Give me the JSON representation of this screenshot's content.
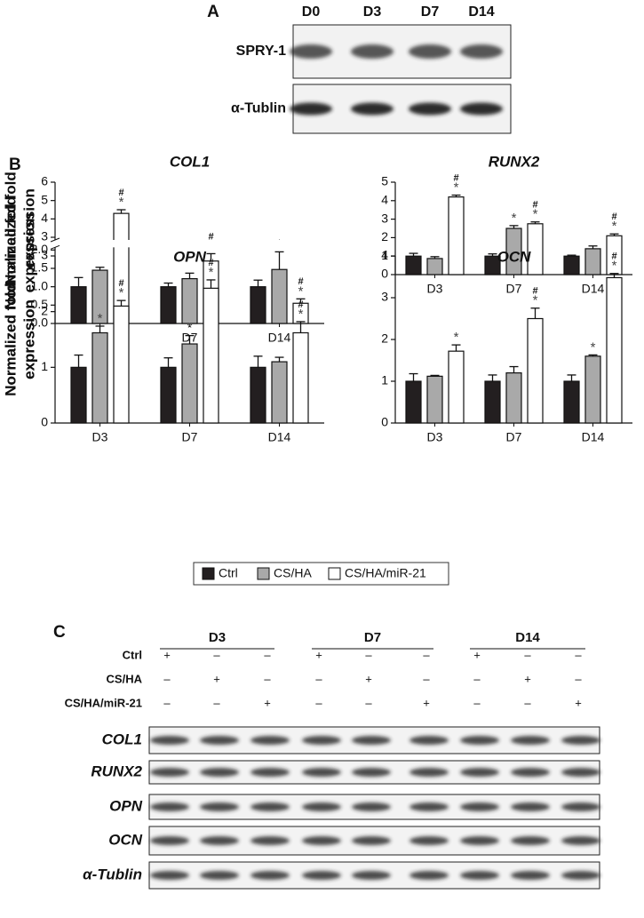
{
  "panel_a": {
    "label": "A",
    "lanes": [
      "D0",
      "D3",
      "D7",
      "D14"
    ],
    "rows": [
      "SPRY-1",
      "α-Tublin"
    ]
  },
  "panel_b_label": "B",
  "chart_data": [
    {
      "type": "bar",
      "title": "COL1",
      "y_label": [
        "Normalized fold",
        "expression"
      ],
      "categories": [
        "D3",
        "D7",
        "D14"
      ],
      "series": [
        {
          "name": "Ctrl",
          "color": "#231f20",
          "values": [
            1,
            1,
            1
          ],
          "errors": [
            0.25,
            0.1,
            0.18
          ],
          "annotations": [
            null,
            null,
            null
          ]
        },
        {
          "name": "CS/HA",
          "color": "#a9a9a9",
          "values": [
            1.45,
            1.22,
            1.47
          ],
          "errors": [
            0.08,
            0.15,
            0.48
          ],
          "annotations": [
            null,
            null,
            [
              "*"
            ]
          ]
        },
        {
          "name": "CS/HA/miR-21",
          "color": "#ffffff",
          "values": [
            4.3,
            1.7,
            0.55
          ],
          "errors": [
            0.2,
            0.2,
            0.12
          ],
          "annotations": [
            [
              "#",
              "*"
            ],
            [
              "#",
              "*"
            ],
            [
              "#",
              "*"
            ]
          ]
        }
      ],
      "ylim": [
        0,
        6
      ],
      "axis_break": [
        2,
        3
      ],
      "yticks": [
        {
          "value": 0,
          "label": "0.0"
        },
        {
          "value": 0.5,
          "label": "0.5"
        },
        {
          "value": 1,
          "label": "1.0"
        },
        {
          "value": 1.5,
          "label": "1.5"
        },
        {
          "value": 2,
          "label": "2.0"
        },
        3,
        4,
        5,
        6
      ],
      "legend": "bottom"
    },
    {
      "type": "bar",
      "title": "RUNX2",
      "y_label": [
        "Normalized fold",
        "expression"
      ],
      "categories": [
        "D3",
        "D7",
        "D14"
      ],
      "series": [
        {
          "name": "Ctrl",
          "color": "#231f20",
          "values": [
            1,
            1,
            1
          ],
          "errors": [
            0.15,
            0.12,
            0.05
          ],
          "annotations": [
            null,
            null,
            null
          ]
        },
        {
          "name": "CS/HA",
          "color": "#a9a9a9",
          "values": [
            0.87,
            2.5,
            1.4
          ],
          "errors": [
            0.1,
            0.15,
            0.15
          ],
          "annotations": [
            null,
            [
              "*"
            ],
            null
          ]
        },
        {
          "name": "CS/HA/miR-21",
          "color": "#ffffff",
          "values": [
            4.2,
            2.75,
            2.1
          ],
          "errors": [
            0.1,
            0.1,
            0.1
          ],
          "annotations": [
            [
              "#",
              "*"
            ],
            [
              "#",
              "*"
            ],
            [
              "#",
              "*"
            ]
          ]
        }
      ],
      "ylim": [
        0,
        5
      ],
      "yticks": [
        0,
        1,
        2,
        3,
        4,
        5
      ]
    },
    {
      "type": "bar",
      "title": "OPN",
      "y_label": [
        "Normalized fold",
        "expression"
      ],
      "categories": [
        "D3",
        "D7",
        "D14"
      ],
      "series": [
        {
          "name": "Ctrl",
          "color": "#231f20",
          "values": [
            1,
            1,
            1
          ],
          "errors": [
            0.22,
            0.17,
            0.2
          ],
          "annotations": [
            null,
            null,
            null
          ]
        },
        {
          "name": "CS/HA",
          "color": "#a9a9a9",
          "values": [
            1.62,
            1.42,
            1.1
          ],
          "errors": [
            0.12,
            0.15,
            0.08
          ],
          "annotations": [
            [
              "*"
            ],
            [
              "*"
            ],
            null
          ]
        },
        {
          "name": "CS/HA/miR-21",
          "color": "#ffffff",
          "values": [
            2.1,
            2.42,
            1.62
          ],
          "errors": [
            0.1,
            0.15,
            0.2
          ],
          "annotations": [
            [
              "#",
              "*"
            ],
            [
              "#",
              "*"
            ],
            [
              "#",
              "*"
            ]
          ]
        }
      ],
      "ylim": [
        0,
        3
      ],
      "yticks": [
        0,
        1,
        2,
        3
      ]
    },
    {
      "type": "bar",
      "title": "OCN",
      "y_label": [
        "Normalized fold",
        "expression"
      ],
      "categories": [
        "D3",
        "D7",
        "D14"
      ],
      "series": [
        {
          "name": "Ctrl",
          "color": "#231f20",
          "values": [
            1,
            1,
            1
          ],
          "errors": [
            0.18,
            0.15,
            0.15
          ],
          "annotations": [
            null,
            null,
            null
          ]
        },
        {
          "name": "CS/HA",
          "color": "#a9a9a9",
          "values": [
            1.12,
            1.2,
            1.6
          ],
          "errors": [
            0.02,
            0.15,
            0.03
          ],
          "annotations": [
            null,
            null,
            [
              "*"
            ]
          ]
        },
        {
          "name": "CS/HA/miR-21",
          "color": "#ffffff",
          "values": [
            1.72,
            2.5,
            3.48
          ],
          "errors": [
            0.15,
            0.25,
            0.1
          ],
          "annotations": [
            [
              "*"
            ],
            [
              "#",
              "*"
            ],
            [
              "#",
              "*"
            ]
          ]
        }
      ],
      "ylim": [
        0,
        4
      ],
      "yticks": [
        0,
        1,
        2,
        3,
        4
      ]
    }
  ],
  "panel_c": {
    "label": "C",
    "groups": [
      "D3",
      "D7",
      "D14"
    ],
    "conditions": [
      {
        "name": "Ctrl",
        "signs": [
          "+",
          "–",
          "–",
          "+",
          "–",
          "–",
          "+",
          "–",
          "–"
        ]
      },
      {
        "name": "CS/HA",
        "signs": [
          "–",
          "+",
          "–",
          "–",
          "+",
          "–",
          "–",
          "+",
          "–"
        ]
      },
      {
        "name": "CS/HA/miR-21",
        "signs": [
          "–",
          "–",
          "+",
          "–",
          "–",
          "+",
          "–",
          "–",
          "+"
        ]
      }
    ],
    "bands": [
      "COL1",
      "RUNX2",
      "OPN",
      "OCN",
      "α-Tublin"
    ]
  }
}
